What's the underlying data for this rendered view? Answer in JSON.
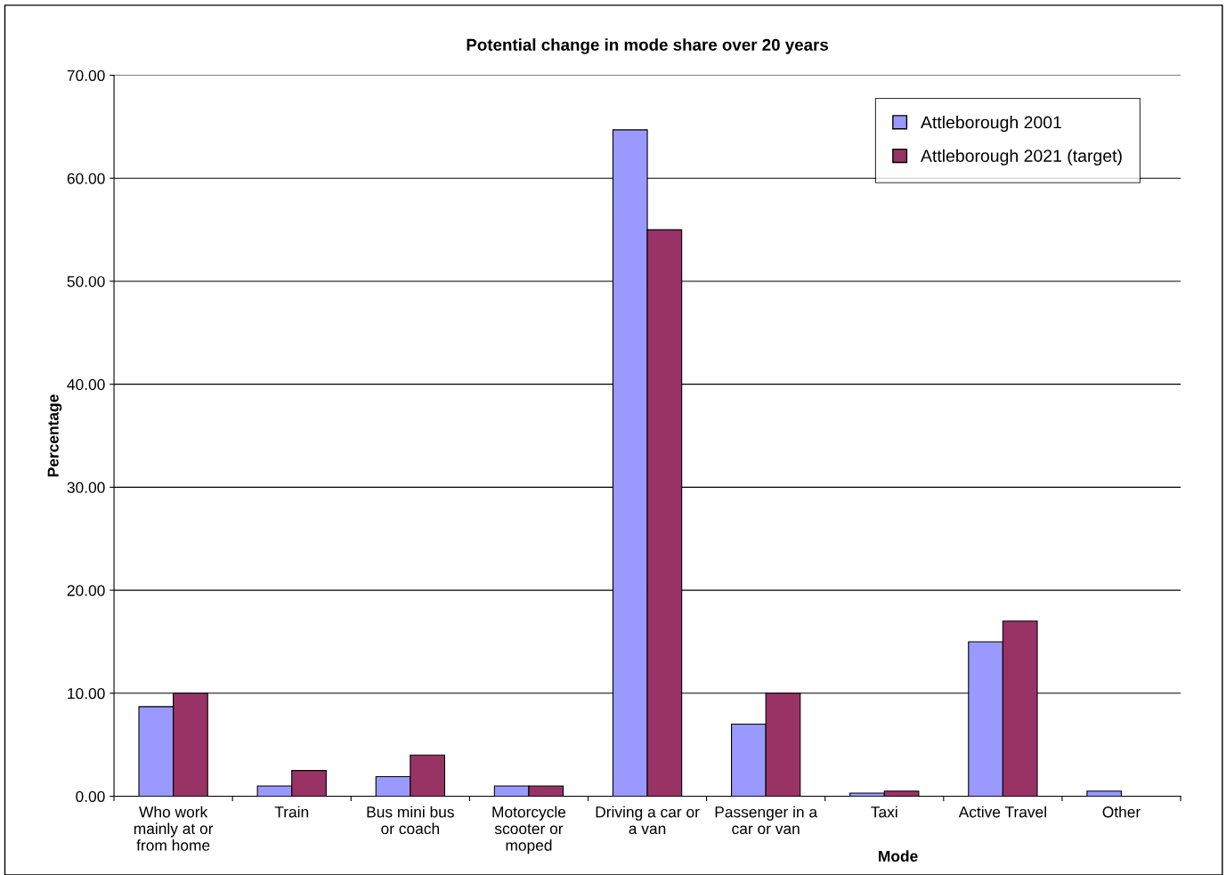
{
  "chart_data": {
    "type": "bar",
    "title": "Potential change in mode share over 20 years",
    "xlabel": "Mode",
    "ylabel": "Percentage",
    "categories": [
      "Who work\nmainly at or\nfrom home",
      "Train",
      "Bus mini bus\nor coach",
      "Motorcycle\nscooter or\nmoped",
      "Driving a car or\na van",
      "Passenger in a\ncar or van",
      "Taxi",
      "Active Travel",
      "Other"
    ],
    "series": [
      {
        "name": "Attleborough 2001",
        "color": "#9999ff",
        "values": [
          8.7,
          1.0,
          1.9,
          1.0,
          64.7,
          7.0,
          0.3,
          15.0,
          0.5
        ]
      },
      {
        "name": "Attleborough 2021 (target)",
        "color": "#993366",
        "values": [
          10.0,
          2.5,
          4.0,
          1.0,
          55.0,
          10.0,
          0.5,
          17.0,
          null
        ]
      }
    ],
    "ylim": [
      0,
      70
    ],
    "yticks": [
      {
        "value": 0,
        "label": "0.00"
      },
      {
        "value": 10,
        "label": "10.00"
      },
      {
        "value": 20,
        "label": "20.00"
      },
      {
        "value": 30,
        "label": "30.00"
      },
      {
        "value": 40,
        "label": "40.00"
      },
      {
        "value": 50,
        "label": "50.00"
      },
      {
        "value": 60,
        "label": "60.00"
      },
      {
        "value": 70,
        "label": "70.00"
      }
    ],
    "grid": "y",
    "legend": "top right"
  }
}
